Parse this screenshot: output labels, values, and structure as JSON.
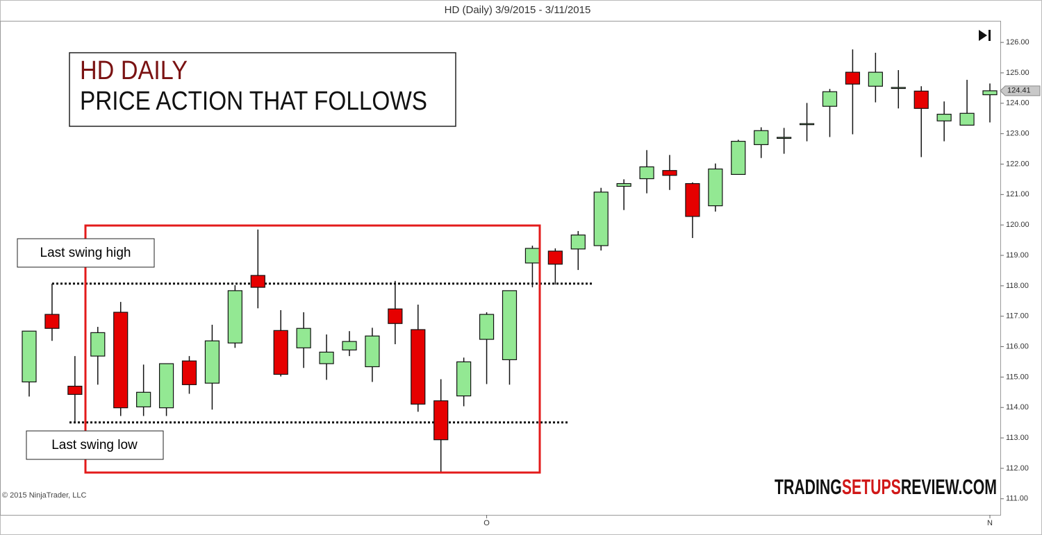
{
  "chart_data": {
    "type": "candlestick",
    "title": "HD (Daily)  3/9/2015 - 3/11/2015",
    "annotation_title": "HD DAILY",
    "annotation_subtitle": "PRICE ACTION THAT FOLLOWS",
    "swing_high_label": "Last swing  high",
    "swing_low_label": "Last swing  low",
    "swing_high_level": 118.07,
    "swing_low_level": 113.51,
    "copyright": "© 2015 NinjaTrader, LLC",
    "watermark": [
      "TRADING",
      "SETUPS",
      "REVIEW.COM"
    ],
    "last_price": 124.41,
    "up_color": "#93e893",
    "down_color": "#e60000",
    "categories": [
      null,
      null,
      null,
      null,
      null,
      null,
      null,
      null,
      null,
      null,
      null,
      null,
      null,
      null,
      null,
      null,
      null,
      null,
      null,
      null,
      "O",
      null,
      null,
      null,
      null,
      null,
      null,
      null,
      null,
      null,
      null,
      null,
      null,
      null,
      null,
      null,
      null,
      null,
      null,
      null,
      null,
      null,
      "N"
    ],
    "open": [
      114.84,
      117.06,
      114.7,
      115.69,
      117.13,
      114.02,
      113.99,
      115.53,
      114.8,
      116.12,
      118.34,
      116.53,
      115.96,
      115.44,
      115.89,
      115.34,
      117.24,
      116.56,
      114.22,
      114.38,
      116.24,
      115.57,
      118.75,
      119.14,
      119.21,
      119.32,
      121.27,
      121.52,
      121.79,
      121.36,
      120.63,
      121.66,
      122.64,
      122.86,
      123.31,
      123.9,
      125.02,
      124.56,
      124.5,
      124.4,
      123.42,
      123.28,
      124.28
    ],
    "high": [
      116.51,
      118.07,
      115.69,
      116.65,
      117.47,
      115.41,
      115.44,
      115.69,
      116.72,
      118.02,
      119.85,
      117.2,
      117.13,
      116.4,
      116.51,
      116.62,
      118.16,
      117.38,
      114.93,
      115.64,
      117.13,
      117.84,
      119.32,
      119.23,
      119.8,
      121.22,
      121.5,
      122.46,
      122.3,
      121.4,
      122.02,
      122.8,
      123.21,
      123.19,
      124.01,
      124.47,
      125.77,
      125.66,
      125.09,
      124.56,
      124.06,
      124.77,
      124.65
    ],
    "low": [
      114.36,
      116.19,
      113.51,
      114.75,
      113.72,
      113.72,
      113.72,
      114.45,
      113.93,
      115.96,
      117.26,
      115.02,
      115.3,
      114.91,
      115.69,
      114.84,
      116.08,
      113.86,
      111.85,
      114.04,
      114.77,
      114.75,
      117.95,
      118.04,
      118.52,
      119.16,
      120.49,
      121.04,
      121.15,
      119.57,
      120.44,
      121.66,
      122.2,
      122.34,
      122.75,
      122.89,
      122.98,
      124.03,
      123.83,
      122.23,
      122.75,
      123.28,
      123.37
    ],
    "close": [
      116.51,
      116.6,
      114.43,
      116.46,
      113.99,
      114.5,
      115.44,
      114.75,
      116.19,
      117.84,
      117.95,
      115.09,
      116.6,
      115.82,
      116.17,
      116.35,
      116.76,
      114.11,
      112.94,
      115.5,
      117.06,
      117.84,
      119.23,
      118.71,
      119.67,
      121.08,
      121.36,
      121.91,
      121.63,
      120.28,
      121.84,
      122.75,
      123.1,
      122.88,
      123.33,
      124.38,
      124.63,
      125.02,
      124.52,
      123.83,
      123.64,
      123.67,
      124.41
    ],
    "ylim": [
      110.47,
      126.71
    ],
    "yticks": [
      {
        "value": 111,
        "label": "111.00"
      },
      {
        "value": 112,
        "label": "112.00"
      },
      {
        "value": 113,
        "label": "113.00"
      },
      {
        "value": 114,
        "label": "114.00"
      },
      {
        "value": 115,
        "label": "115.00"
      },
      {
        "value": 116,
        "label": "116.00"
      },
      {
        "value": 117,
        "label": "117.00"
      },
      {
        "value": 118,
        "label": "118.00"
      },
      {
        "value": 119,
        "label": "119.00"
      },
      {
        "value": 120,
        "label": "120.00"
      },
      {
        "value": 121,
        "label": "121.00"
      },
      {
        "value": 122,
        "label": "122.00"
      },
      {
        "value": 123,
        "label": "123.00"
      },
      {
        "value": 124,
        "label": "124.00"
      },
      {
        "value": 125,
        "label": "125.00"
      },
      {
        "value": 126,
        "label": "126.00"
      }
    ]
  }
}
